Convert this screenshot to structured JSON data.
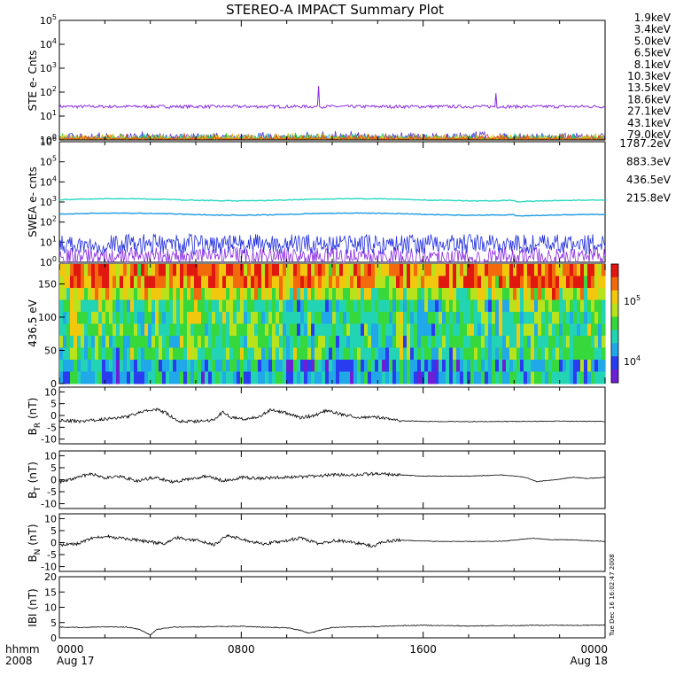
{
  "title": "STEREO-A IMPACT Summary Plot",
  "colors": {
    "ste": [
      "#8a2be2",
      "#5b2be2",
      "#2d48e8",
      "#2aa3d6",
      "#26c9c9",
      "#22c27a",
      "#31c21a",
      "#9ad21a",
      "#e6d21a",
      "#ee9a12",
      "#e83a12"
    ],
    "swea": [
      "#8a2be2",
      "#2330e0",
      "#1c9ae0",
      "#27d7c0"
    ],
    "colorbar": [
      "#6d1fd6",
      "#2a3cf0",
      "#21a8e8",
      "#22d4b4",
      "#36d83c",
      "#b8e21c",
      "#f2c80f",
      "#f26a0c",
      "#e0180f"
    ]
  },
  "chart_data": [
    {
      "type": "line",
      "panel": "ste",
      "ylabel": "STE e- Cnts",
      "ylog": true,
      "ylim": [
        1,
        100000
      ],
      "yticks": [
        "10^0",
        "10^1",
        "10^2",
        "10^3",
        "10^4",
        "10^5"
      ],
      "series": [
        {
          "name": "1.9keV",
          "level": 25
        },
        {
          "name": "3.4keV",
          "level": 1.2
        },
        {
          "name": "5.0keV",
          "level": 1.1
        },
        {
          "name": "6.5keV",
          "level": 1.0
        },
        {
          "name": "8.1keV",
          "level": 1.0
        },
        {
          "name": "10.3keV",
          "level": 1.0
        },
        {
          "name": "13.5keV",
          "level": 1.0
        },
        {
          "name": "18.6keV",
          "level": 1.0
        },
        {
          "name": "27.1keV",
          "level": 1.0
        },
        {
          "name": "43.1keV",
          "level": 1.0
        },
        {
          "name": "79.0keV",
          "level": 1.0
        }
      ],
      "spikes": [
        {
          "x": 11.4,
          "y": 180
        },
        {
          "x": 19.2,
          "y": 90
        }
      ]
    },
    {
      "type": "line",
      "panel": "swea",
      "ylabel": "SWEA e- cnts",
      "ylog": true,
      "ylim": [
        1,
        1000000
      ],
      "yticks": [
        "10^0",
        "10^1",
        "10^2",
        "10^3",
        "10^4",
        "10^5",
        "10^6"
      ],
      "series": [
        {
          "name": "1787.2eV",
          "level": 2
        },
        {
          "name": "883.3eV",
          "level": 8
        },
        {
          "name": "436.5eV",
          "level": 250
        },
        {
          "name": "215.8eV",
          "level": 1300
        }
      ]
    },
    {
      "type": "heatmap",
      "panel": "pad",
      "ylabel": "436.5 eV",
      "ylim": [
        0,
        180
      ],
      "yticks": [
        "0",
        "50",
        "100",
        "150"
      ],
      "colorbar": {
        "log": true,
        "labels": [
          "10^4",
          "10^5"
        ]
      }
    },
    {
      "type": "line",
      "panel": "br",
      "ylabel": "B_R (nT)",
      "ylim": [
        -12,
        12
      ],
      "yticks": [
        "-10",
        "-5",
        "0",
        "5",
        "10"
      ],
      "points": [
        [
          0,
          -2
        ],
        [
          1,
          -2.5
        ],
        [
          2,
          -1.5
        ],
        [
          3,
          -0.5
        ],
        [
          3.6,
          1.5
        ],
        [
          4.3,
          2.5
        ],
        [
          4.7,
          1
        ],
        [
          5.2,
          -2.5
        ],
        [
          6.5,
          -2.3
        ],
        [
          6.8,
          -1.5
        ],
        [
          7.2,
          1.5
        ],
        [
          7.6,
          -1
        ],
        [
          8.2,
          -1.5
        ],
        [
          8.8,
          -0.5
        ],
        [
          9.3,
          2.5
        ],
        [
          10,
          1
        ],
        [
          10.6,
          -1
        ],
        [
          11.2,
          0
        ],
        [
          11.8,
          2.2
        ],
        [
          12.4,
          0.5
        ],
        [
          13.2,
          -0.8
        ],
        [
          13.8,
          -0.5
        ],
        [
          14.2,
          -1
        ],
        [
          15,
          -2.2
        ],
        [
          16,
          -2.5
        ],
        [
          18,
          -2.6
        ],
        [
          20,
          -2.5
        ],
        [
          22,
          -2.4
        ],
        [
          24,
          -2.5
        ]
      ]
    },
    {
      "type": "line",
      "panel": "bt",
      "ylabel": "B_T (nT)",
      "ylim": [
        -12,
        12
      ],
      "yticks": [
        "-10",
        "-5",
        "0",
        "5",
        "10"
      ],
      "points": [
        [
          0,
          -1
        ],
        [
          0.8,
          1
        ],
        [
          1.4,
          2.5
        ],
        [
          2,
          0.5
        ],
        [
          2.6,
          1.5
        ],
        [
          3.4,
          -0.5
        ],
        [
          4.2,
          1
        ],
        [
          5,
          -1
        ],
        [
          5.8,
          0.5
        ],
        [
          6.5,
          1.5
        ],
        [
          7.2,
          -0.5
        ],
        [
          8,
          1
        ],
        [
          8.8,
          0.5
        ],
        [
          9.6,
          1
        ],
        [
          10.4,
          1
        ],
        [
          11.2,
          1.5
        ],
        [
          12,
          2
        ],
        [
          13,
          2
        ],
        [
          14,
          2.5
        ],
        [
          15,
          2
        ],
        [
          16,
          1.5
        ],
        [
          18,
          1.5
        ],
        [
          19.5,
          2
        ],
        [
          20.5,
          1
        ],
        [
          21,
          -0.8
        ],
        [
          21.8,
          0
        ],
        [
          22.6,
          1
        ],
        [
          23.2,
          0.5
        ],
        [
          24,
          1
        ]
      ]
    },
    {
      "type": "line",
      "panel": "bn",
      "ylabel": "B_N (nT)",
      "ylim": [
        -12,
        12
      ],
      "yticks": [
        "-10",
        "-5",
        "0",
        "5",
        "10"
      ],
      "points": [
        [
          0,
          -1
        ],
        [
          0.8,
          -0.5
        ],
        [
          1.5,
          2
        ],
        [
          2.2,
          2.5
        ],
        [
          3,
          1.5
        ],
        [
          3.8,
          0.5
        ],
        [
          4.6,
          -0.5
        ],
        [
          5.2,
          2
        ],
        [
          6,
          1
        ],
        [
          6.8,
          -1
        ],
        [
          7.4,
          3
        ],
        [
          8.2,
          1
        ],
        [
          9,
          -0.5
        ],
        [
          9.8,
          0.5
        ],
        [
          10.6,
          2
        ],
        [
          11.4,
          -0.5
        ],
        [
          12.2,
          1
        ],
        [
          13,
          0
        ],
        [
          13.8,
          -1.5
        ],
        [
          14.3,
          0.5
        ],
        [
          15,
          1
        ],
        [
          16.5,
          0.5
        ],
        [
          18,
          0.5
        ],
        [
          19.5,
          0.6
        ],
        [
          20.8,
          1.8
        ],
        [
          21.6,
          1.2
        ],
        [
          22.5,
          1.2
        ],
        [
          23.3,
          0.8
        ],
        [
          24,
          0.5
        ]
      ]
    },
    {
      "type": "line",
      "panel": "bmag",
      "ylabel": "|B| (nT)",
      "ylim": [
        0,
        20
      ],
      "yticks": [
        "0",
        "5",
        "10",
        "15",
        "20"
      ],
      "points": [
        [
          0,
          3.5
        ],
        [
          1,
          3.4
        ],
        [
          2,
          3.6
        ],
        [
          3,
          3.5
        ],
        [
          3.5,
          2.8
        ],
        [
          4,
          1
        ],
        [
          4.3,
          2.8
        ],
        [
          5,
          3.5
        ],
        [
          6,
          3.6
        ],
        [
          7,
          3.7
        ],
        [
          8,
          3.8
        ],
        [
          9,
          3.5
        ],
        [
          10,
          3.3
        ],
        [
          10.6,
          2.5
        ],
        [
          11,
          1.5
        ],
        [
          11.5,
          2.6
        ],
        [
          12,
          3.4
        ],
        [
          13,
          3.6
        ],
        [
          14,
          3.7
        ],
        [
          15,
          4
        ],
        [
          16,
          4.1
        ],
        [
          17,
          4
        ],
        [
          18,
          3.9
        ],
        [
          19,
          4
        ],
        [
          20,
          4
        ],
        [
          21,
          4.1
        ],
        [
          22,
          4.1
        ],
        [
          23,
          4.1
        ],
        [
          24,
          4.2
        ]
      ]
    }
  ],
  "ste_legend": [
    "1.9keV",
    "3.4keV",
    "5.0keV",
    "6.5keV",
    "8.1keV",
    "10.3keV",
    "13.5keV",
    "18.6keV",
    "27.1keV",
    "43.1keV",
    "79.0keV"
  ],
  "swea_legend": [
    "1787.2eV",
    "883.3eV",
    "436.5eV",
    "215.8eV"
  ],
  "ylabels": {
    "ste": "STE e- Cnts",
    "swea": "SWEA e- cnts",
    "pad": "436.5 eV",
    "br_main": "B",
    "br_sub": "R",
    "br_unit": " (nT)",
    "bt_main": "B",
    "bt_sub": "T",
    "bt_unit": " (nT)",
    "bn_main": "B",
    "bn_sub": "N",
    "bn_unit": " (nT)",
    "bmag": "IBI (nT)"
  },
  "xaxis": {
    "label1": "hhmm",
    "label2": "2008",
    "ticks": [
      {
        "x": 0,
        "hhmm": "0000",
        "date": "Aug 17"
      },
      {
        "x": 8,
        "hhmm": "0800",
        "date": ""
      },
      {
        "x": 16,
        "hhmm": "1600",
        "date": ""
      },
      {
        "x": 24,
        "hhmm": "0000",
        "date": "Aug 18"
      }
    ]
  },
  "stamp": "Tue Dec 16 16:02:47 2008"
}
